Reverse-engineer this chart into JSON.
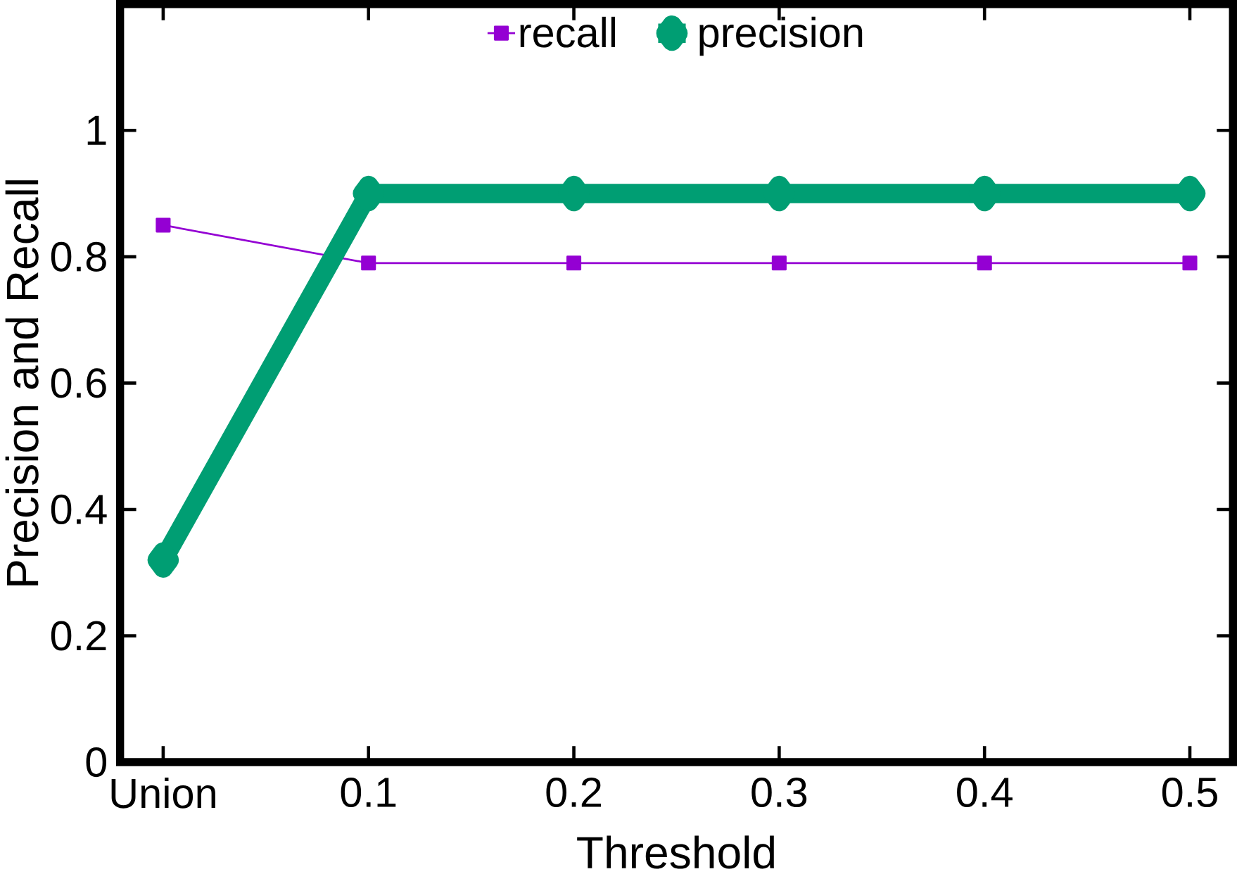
{
  "chart_data": {
    "type": "line",
    "xlabel": "Threshold",
    "ylabel": "Precision and Recall",
    "categories": [
      "Union",
      "0.1",
      "0.2",
      "0.3",
      "0.4",
      "0.5"
    ],
    "ylim": [
      0,
      1.2
    ],
    "yticks": [
      0,
      0.2,
      0.4,
      0.6,
      0.8,
      1
    ],
    "legend": "top",
    "series": [
      {
        "name": "recall",
        "color": "#9400d3",
        "marker": "square",
        "values": [
          0.85,
          0.79,
          0.79,
          0.79,
          0.79,
          0.79
        ]
      },
      {
        "name": "precision",
        "color": "#009e73",
        "marker": "diamond",
        "values": [
          0.32,
          0.9,
          0.9,
          0.9,
          0.9,
          0.9
        ]
      }
    ]
  }
}
